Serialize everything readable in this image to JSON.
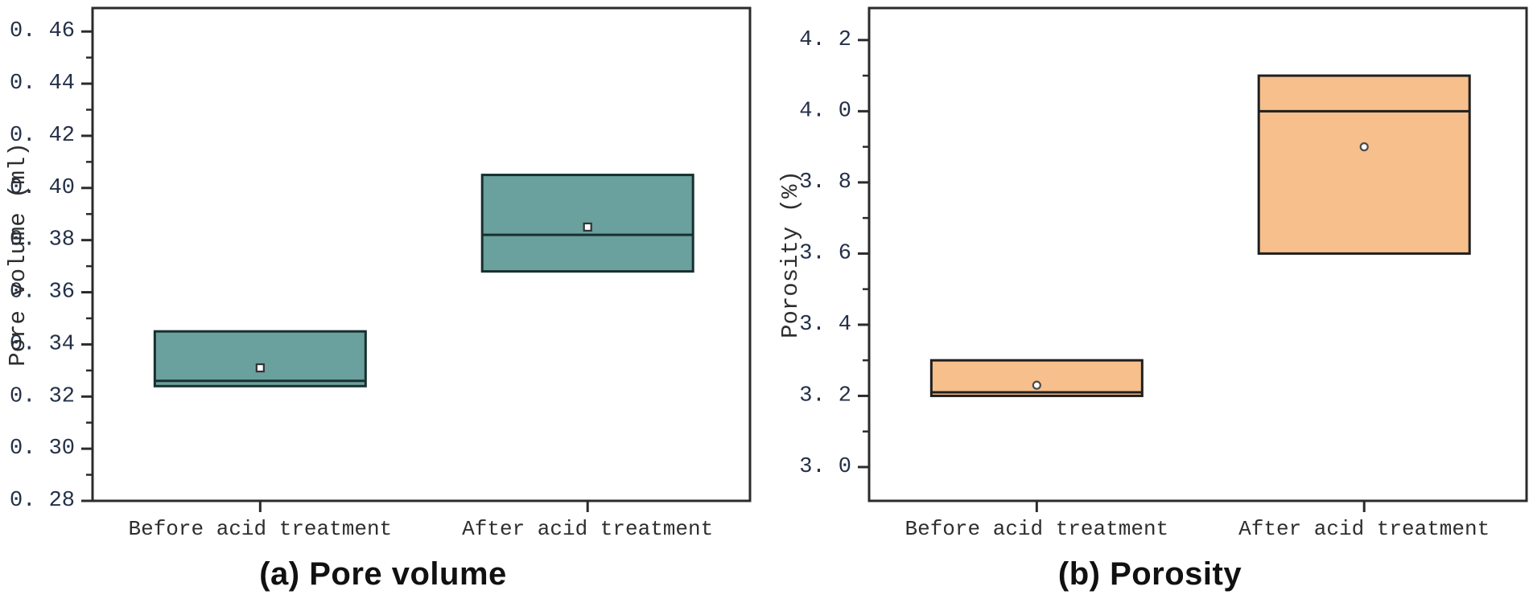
{
  "figure": {
    "background": "#ffffff",
    "axis_color": "#2b2b2b"
  },
  "chart_data": [
    {
      "type": "box",
      "panel": "a",
      "caption": "(a) Pore volume",
      "ylabel": "Pore volume (ml)",
      "categories": [
        "Before acid treatment",
        "After acid treatment"
      ],
      "ylim": [
        0.28,
        0.469
      ],
      "grid": false,
      "legend": "none",
      "yticks": [
        {
          "v": 0.28,
          "label": "0. 28"
        },
        {
          "v": 0.3,
          "label": "0. 30"
        },
        {
          "v": 0.32,
          "label": "0. 32"
        },
        {
          "v": 0.34,
          "label": "0. 34"
        },
        {
          "v": 0.36,
          "label": "0. 36"
        },
        {
          "v": 0.38,
          "label": "0. 38"
        },
        {
          "v": 0.4,
          "label": "0. 40"
        },
        {
          "v": 0.42,
          "label": "0. 42"
        },
        {
          "v": 0.44,
          "label": "0. 44"
        },
        {
          "v": 0.46,
          "label": "0. 46"
        }
      ],
      "yminor": [
        0.29,
        0.31,
        0.33,
        0.35,
        0.37,
        0.39,
        0.41,
        0.43,
        0.45
      ],
      "boxes": [
        {
          "category": "Before acid treatment",
          "q1": 0.324,
          "median": 0.326,
          "q3": 0.345,
          "mean": 0.331
        },
        {
          "category": "After acid treatment",
          "q1": 0.368,
          "median": 0.382,
          "q3": 0.405,
          "mean": 0.385
        }
      ],
      "box_fill": "#6AA09D",
      "box_stroke": "#17302f",
      "mean_marker": "square"
    },
    {
      "type": "box",
      "panel": "b",
      "caption": "(b) Porosity",
      "ylabel": "Porosity (%)",
      "categories": [
        "Before acid treatment",
        "After acid treatment"
      ],
      "ylim": [
        2.905,
        4.29
      ],
      "grid": false,
      "legend": "none",
      "yticks": [
        {
          "v": 3.0,
          "label": "3. 0"
        },
        {
          "v": 3.2,
          "label": "3. 2"
        },
        {
          "v": 3.4,
          "label": "3. 4"
        },
        {
          "v": 3.6,
          "label": "3. 6"
        },
        {
          "v": 3.8,
          "label": "3. 8"
        },
        {
          "v": 4.0,
          "label": "4. 0"
        },
        {
          "v": 4.2,
          "label": "4. 2"
        }
      ],
      "yminor": [
        3.1,
        3.3,
        3.5,
        3.7,
        3.9,
        4.1
      ],
      "boxes": [
        {
          "category": "Before acid treatment",
          "q1": 3.2,
          "median": 3.21,
          "q3": 3.3,
          "mean": 3.23
        },
        {
          "category": "After acid treatment",
          "q1": 3.6,
          "median": 4.0,
          "q3": 4.1,
          "mean": 3.9
        }
      ],
      "box_fill": "#F6BF8C",
      "box_stroke": "#1f1f1f",
      "mean_marker": "circle"
    }
  ]
}
